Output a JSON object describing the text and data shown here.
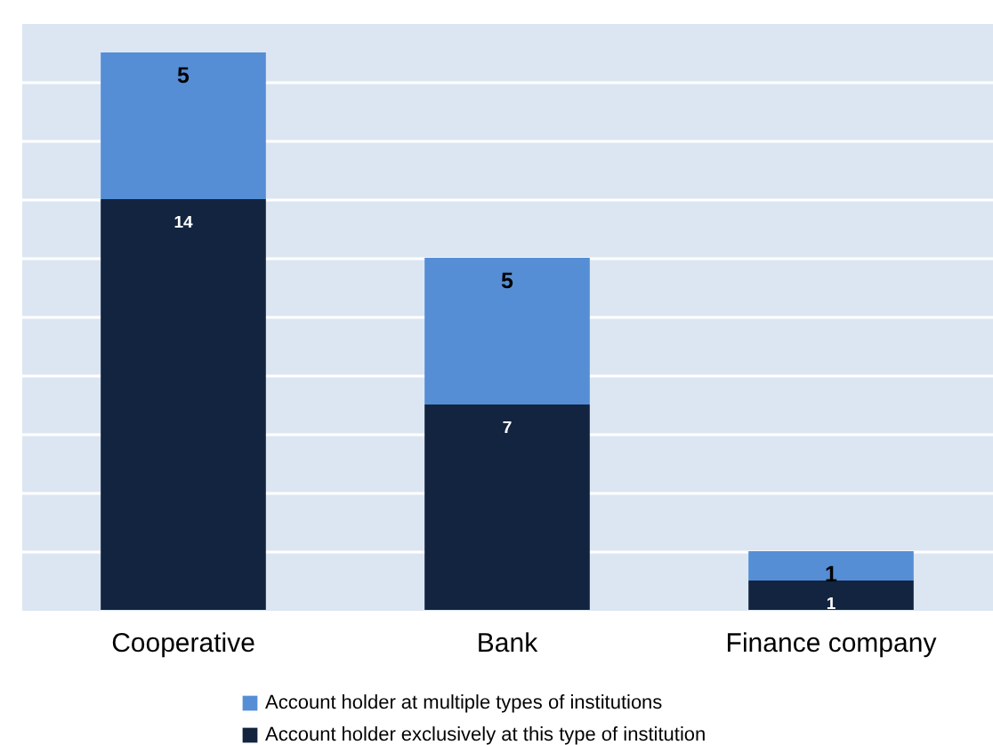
{
  "chart_data": {
    "type": "bar",
    "categories": [
      "Cooperative",
      "Bank",
      "Finance company"
    ],
    "series": [
      {
        "name": "Account holder exclusively at this type of institution",
        "color": "#12243f",
        "values": [
          14,
          7,
          1
        ]
      },
      {
        "name": "Account holder at multiple types of institutions",
        "color": "#558ed5",
        "values": [
          5,
          5,
          1
        ]
      }
    ],
    "stacked": true,
    "ylim": [
      0,
      20
    ],
    "yticks": [
      {
        "value": 2,
        "label": null
      },
      {
        "value": 4,
        "label": null
      },
      {
        "value": 6,
        "label": null
      },
      {
        "value": 8,
        "label": null
      },
      {
        "value": 10,
        "label": null
      },
      {
        "value": 12,
        "label": null
      },
      {
        "value": 14,
        "label": null
      },
      {
        "value": 16,
        "label": null
      },
      {
        "value": 18,
        "label": null
      }
    ],
    "grid": "y",
    "tick_labels": "x",
    "data_labels": true,
    "legend": "bottom"
  }
}
